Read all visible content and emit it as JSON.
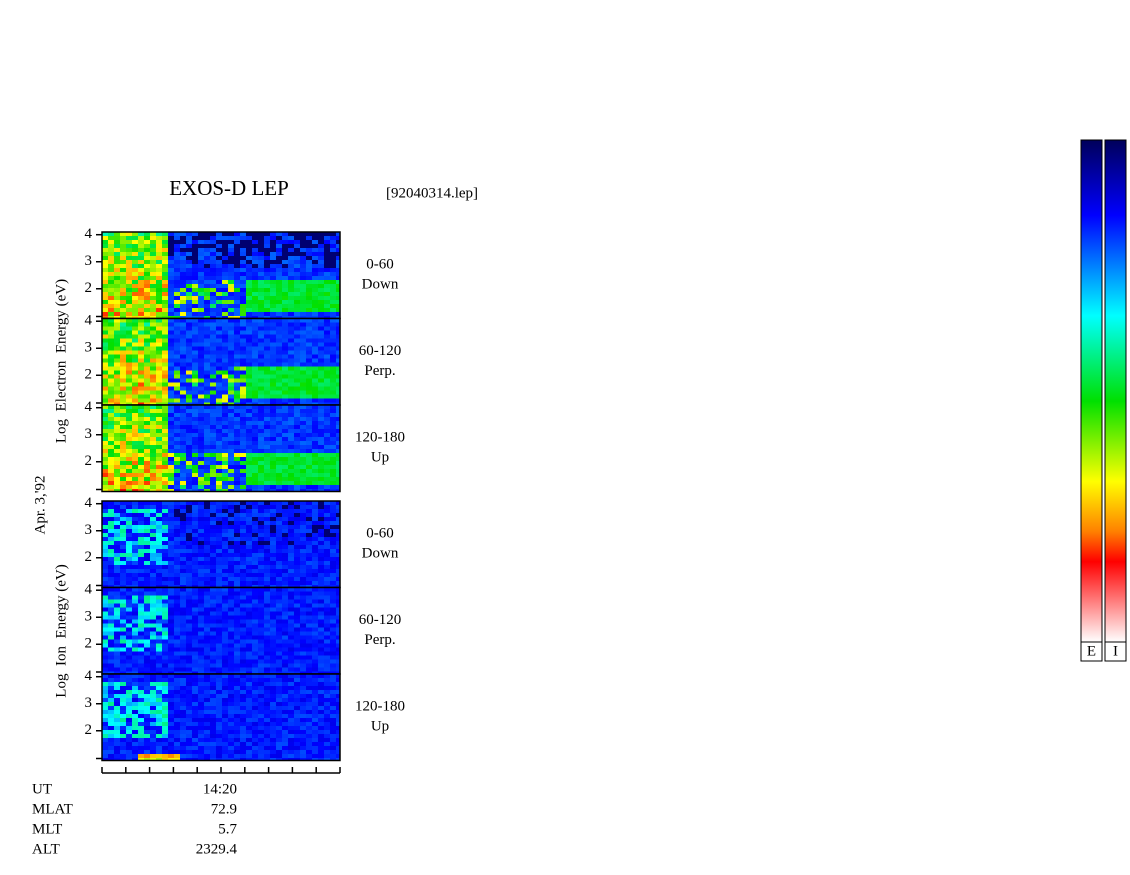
{
  "title": "EXOS-D LEP",
  "file": "[92040314.lep]",
  "date": "Apr. 3,'92",
  "electron_axis_label": "Log  Electron  Energy (eV)",
  "ion_axis_label": "Log  Ion  Energy (eV)",
  "ylim": [
    0.9,
    4.1
  ],
  "yticks": [
    2,
    3,
    4
  ],
  "panels": [
    {
      "species": "electron",
      "angle": "0-60",
      "direction": "Down"
    },
    {
      "species": "electron",
      "angle": "60-120",
      "direction": "Perp."
    },
    {
      "species": "electron",
      "angle": "120-180",
      "direction": "Up"
    },
    {
      "species": "ion",
      "angle": "0-60",
      "direction": "Down"
    },
    {
      "species": "ion",
      "angle": "60-120",
      "direction": "Perp."
    },
    {
      "species": "ion",
      "angle": "120-180",
      "direction": "Up"
    }
  ],
  "footer": [
    [
      "UT",
      "14:20"
    ],
    [
      "MLAT",
      "72.9"
    ],
    [
      "MLT",
      "5.7"
    ],
    [
      "ALT",
      "2329.4"
    ]
  ],
  "colorbars": [
    "E",
    "I"
  ]
}
